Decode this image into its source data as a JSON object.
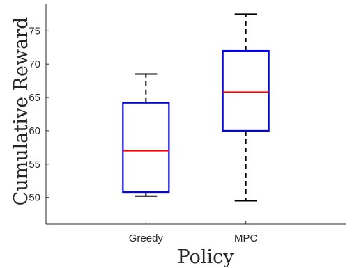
{
  "chart_data": {
    "type": "boxplot",
    "title": "",
    "xlabel": "Policy",
    "ylabel": "Cumulative Reward",
    "categories": [
      "Greedy",
      "MPC"
    ],
    "boxes": [
      {
        "category": "Greedy",
        "whisker_low": 50.2,
        "q1": 50.8,
        "median": 57.0,
        "q3": 64.2,
        "whisker_high": 68.5
      },
      {
        "category": "MPC",
        "whisker_low": 49.5,
        "q1": 60.0,
        "median": 65.8,
        "q3": 72.0,
        "whisker_high": 77.5
      }
    ],
    "ylim": [
      46,
      79
    ],
    "yticks": [
      50,
      55,
      60,
      65,
      70,
      75
    ],
    "grid": false,
    "legend": "none",
    "colors": {
      "box": "#0000ff",
      "median": "#ff0000",
      "whisker": "#000000",
      "axis": "#262626"
    }
  }
}
